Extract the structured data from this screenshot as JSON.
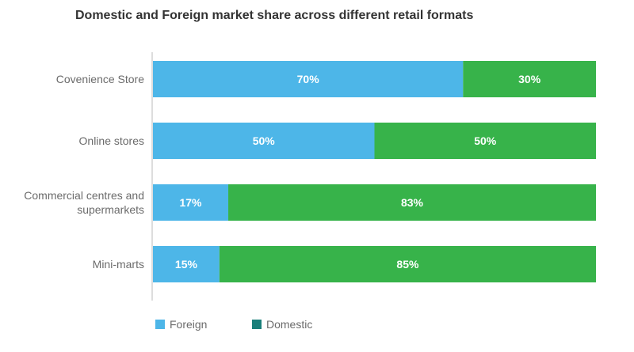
{
  "chart_data": {
    "type": "bar",
    "orientation": "horizontal",
    "stacked": true,
    "title": "Domestic and Foreign market share across different retail formats",
    "categories": [
      [
        "Covenience Store"
      ],
      [
        "Online stores"
      ],
      [
        "Commercial centres and",
        "supermarkets"
      ],
      [
        "Mini-marts"
      ]
    ],
    "series": [
      {
        "name": "Foreign",
        "values": [
          70,
          50,
          17,
          15
        ],
        "labels": [
          "70%",
          "50%",
          "17%",
          "15%"
        ],
        "color": "#4db6e8"
      },
      {
        "name": "Domestic",
        "values": [
          30,
          50,
          83,
          85
        ],
        "labels": [
          "30%",
          "50%",
          "83%",
          "85%"
        ],
        "color": "#37b34a"
      }
    ],
    "xlim": [
      0,
      100
    ],
    "grid": false,
    "legend": {
      "position": "bottom-left",
      "entries": [
        {
          "name": "Foreign",
          "swatch_color": "#4db6e8"
        },
        {
          "name": "Domestic",
          "swatch_color": "#1a7f7a"
        }
      ]
    },
    "axis_color": "#bbbbbb"
  }
}
